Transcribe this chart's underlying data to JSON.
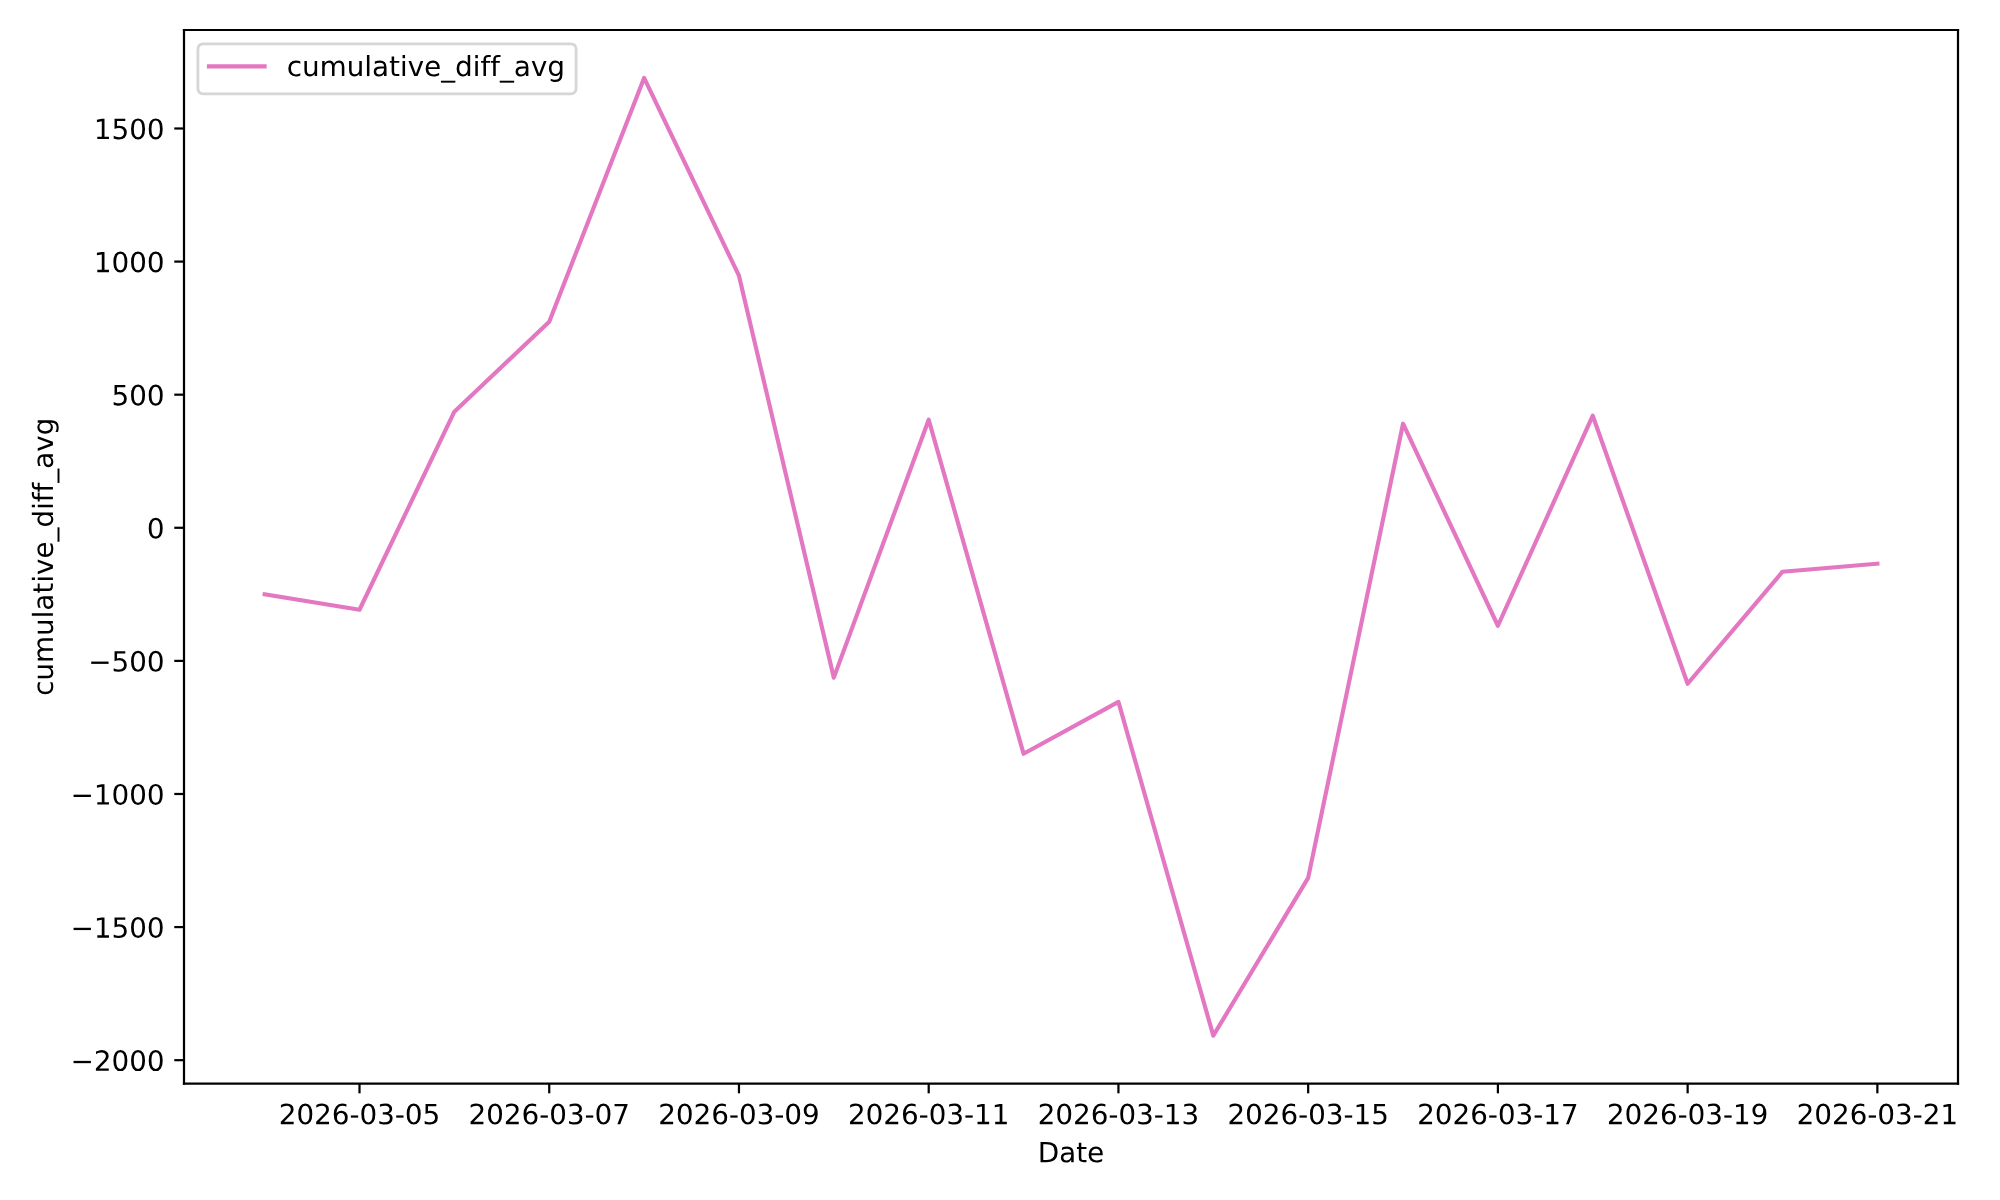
{
  "chart_data": {
    "type": "line",
    "xlabel": "Date",
    "ylabel": "cumulative_diff_avg",
    "x": [
      "2026-03-04",
      "2026-03-05",
      "2026-03-06",
      "2026-03-07",
      "2026-03-08",
      "2026-03-09",
      "2026-03-10",
      "2026-03-11",
      "2026-03-12",
      "2026-03-13",
      "2026-03-14",
      "2026-03-15",
      "2026-03-16",
      "2026-03-17",
      "2026-03-18",
      "2026-03-19",
      "2026-03-20",
      "2026-03-21"
    ],
    "series": [
      {
        "name": "cumulative_diff_avg",
        "color": "#e377c2",
        "values": [
          -250,
          -308,
          436,
          774,
          1690,
          947,
          -563,
          406,
          -849,
          -654,
          -1908,
          -1315,
          391,
          -368,
          421,
          -586,
          -165,
          -135
        ]
      }
    ],
    "xlim": [
      "2026-03-03T03:36",
      "2026-03-21T20:24"
    ],
    "xticks": [
      "2026-03-05",
      "2026-03-07",
      "2026-03-09",
      "2026-03-11",
      "2026-03-13",
      "2026-03-15",
      "2026-03-17",
      "2026-03-19",
      "2026-03-21"
    ],
    "ylim": [
      -2088,
      1870
    ],
    "yticks": [
      {
        "value": -2000,
        "label": "−2000"
      },
      {
        "value": -1500,
        "label": "−1500"
      },
      {
        "value": -1000,
        "label": "−1000"
      },
      {
        "value": -500,
        "label": "−500"
      },
      0,
      500,
      1000,
      1500
    ],
    "grid": false,
    "legend": "top left",
    "marker": "none",
    "line_style": "solid"
  }
}
